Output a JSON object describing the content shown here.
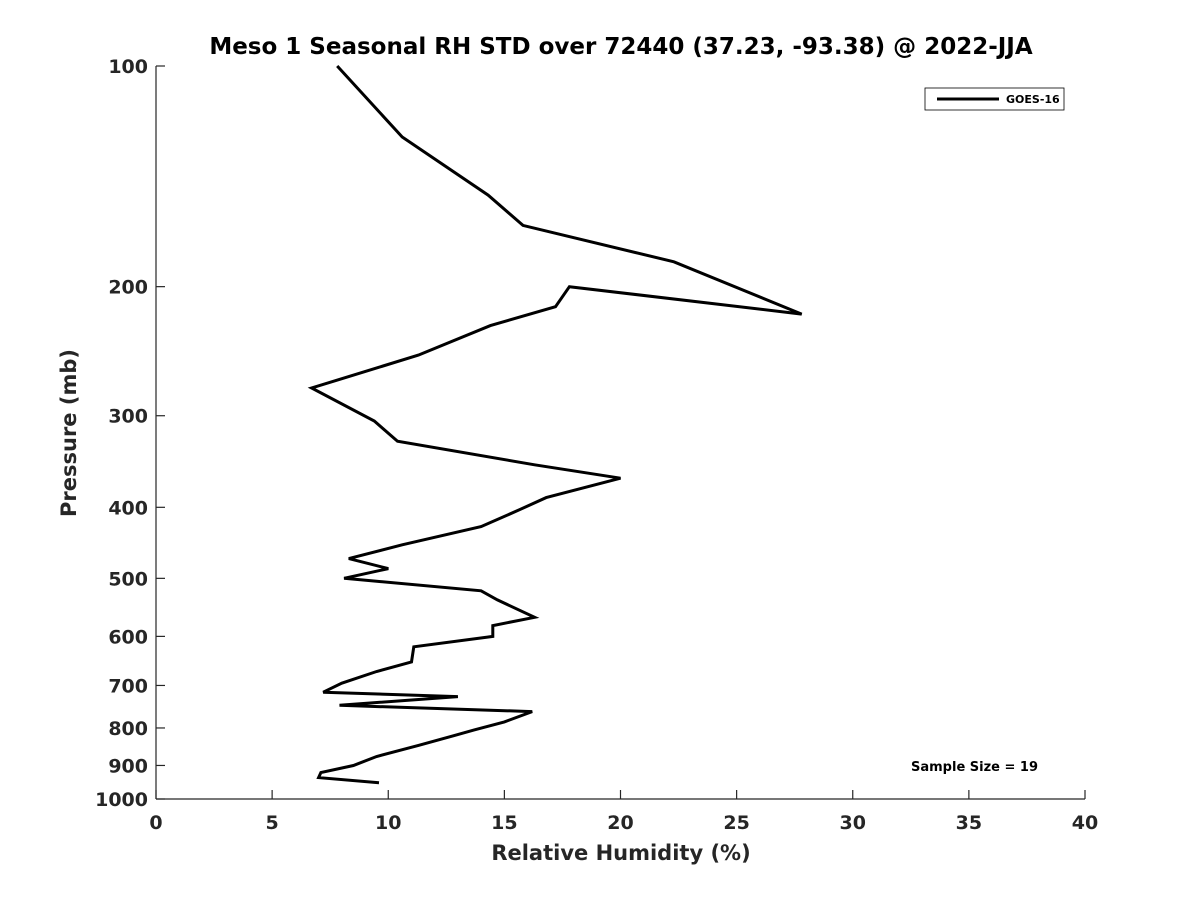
{
  "chart_data": {
    "type": "line",
    "title": "Meso 1 Seasonal RH STD over 72440 (37.23, -93.38) @ 2022-JJA",
    "xlabel": "Relative Humidity (%)",
    "ylabel": "Pressure (mb)",
    "xlim": [
      0,
      40
    ],
    "ylim": [
      100,
      1000
    ],
    "y_scale": "log",
    "y_reversed": true,
    "xticks": [
      0,
      5,
      10,
      15,
      20,
      25,
      30,
      35,
      40
    ],
    "yticks": [
      100,
      200,
      300,
      400,
      500,
      600,
      700,
      800,
      900,
      1000
    ],
    "grid": false,
    "legend_position": "top-right",
    "annotation": "Sample Size = 19",
    "series": [
      {
        "name": "GOES-16",
        "color": "#000000",
        "x": [
          7.8,
          10.6,
          14.3,
          15.8,
          22.3,
          27.8,
          17.8,
          17.2,
          14.4,
          11.3,
          6.7,
          9.4,
          10.4,
          16.3,
          20.0,
          16.8,
          15.5,
          14.0,
          10.6,
          8.3,
          10.0,
          8.1,
          14.0,
          14.7,
          16.3,
          14.5,
          14.5,
          11.1,
          11.0,
          9.5,
          8.0,
          7.2,
          13.0,
          7.9,
          16.2,
          15.0,
          13.7,
          12.8,
          11.3,
          9.5,
          8.5,
          7.1,
          7.0,
          9.6
        ],
        "y": [
          100,
          125,
          150,
          165,
          185,
          218,
          200,
          213,
          226,
          248,
          275,
          305,
          325,
          350,
          365,
          388,
          405,
          425,
          450,
          470,
          485,
          500,
          520,
          535,
          565,
          580,
          600,
          620,
          650,
          670,
          695,
          715,
          725,
          745,
          760,
          785,
          805,
          820,
          845,
          875,
          900,
          920,
          935,
          950
        ]
      }
    ]
  }
}
